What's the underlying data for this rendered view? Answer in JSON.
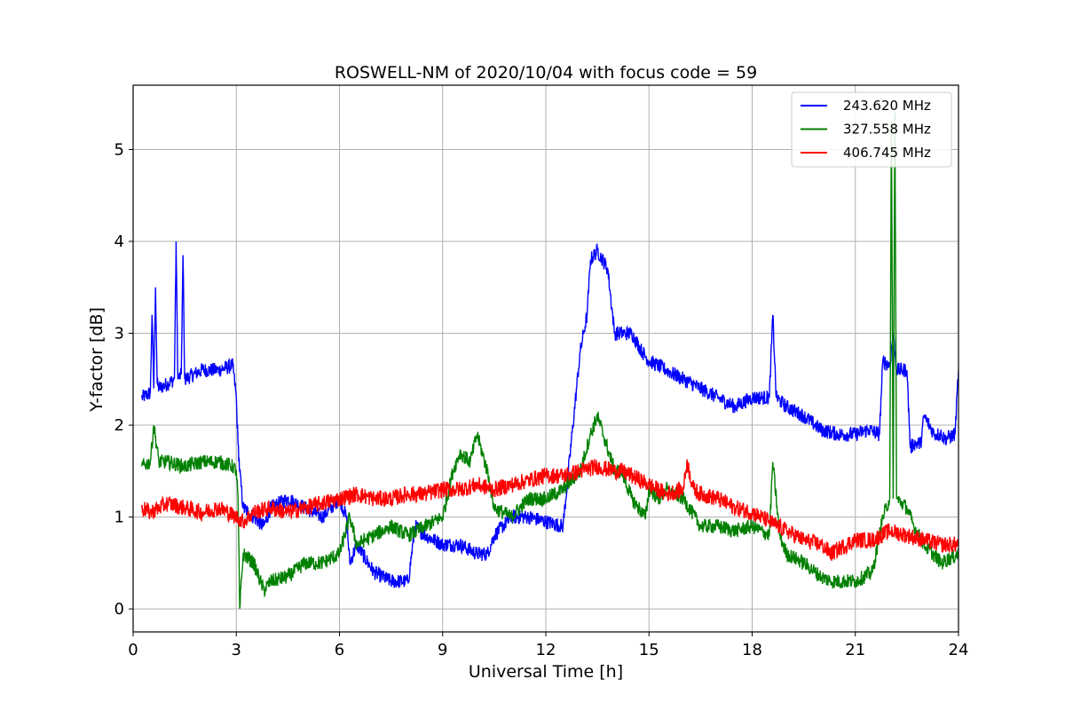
{
  "chart_data": {
    "type": "line",
    "title": "ROSWELL-NM of 2020/10/04 with focus code = 59",
    "xlabel": "Universal Time [h]",
    "ylabel": "Y-factor [dB]",
    "xlim": [
      0,
      24
    ],
    "ylim": [
      -0.25,
      5.7
    ],
    "xticks": [
      0,
      3,
      6,
      9,
      12,
      15,
      18,
      21,
      24
    ],
    "yticks": [
      0,
      1,
      2,
      3,
      4,
      5
    ],
    "grid": true,
    "legend_position": "top-right",
    "series": [
      {
        "name": "243.620 MHz",
        "color": "#0000ff",
        "x": [
          0.25,
          0.5,
          0.55,
          0.6,
          0.65,
          0.7,
          0.75,
          1.0,
          1.2,
          1.25,
          1.3,
          1.4,
          1.45,
          1.5,
          2.0,
          2.5,
          2.9,
          3.0,
          3.05,
          3.1,
          3.2,
          3.5,
          3.8,
          4.0,
          4.5,
          5.0,
          5.5,
          6.0,
          6.2,
          6.3,
          6.5,
          7.0,
          7.5,
          8.0,
          8.2,
          8.5,
          9.0,
          9.5,
          10.0,
          10.3,
          10.5,
          11.0,
          11.5,
          12.0,
          12.5,
          13.0,
          13.1,
          13.2,
          13.3,
          13.5,
          13.8,
          14.0,
          14.3,
          14.5,
          14.8,
          15.0,
          15.5,
          16.0,
          16.5,
          17.0,
          17.5,
          18.0,
          18.3,
          18.5,
          18.6,
          18.7,
          19.0,
          19.5,
          20.0,
          20.5,
          21.0,
          21.4,
          21.7,
          21.8,
          22.0,
          22.1,
          22.2,
          22.5,
          22.6,
          22.7,
          22.9,
          23.0,
          23.3,
          23.5,
          23.6,
          23.9,
          24.0
        ],
        "y": [
          2.3,
          2.35,
          3.2,
          2.4,
          3.5,
          2.45,
          2.4,
          2.45,
          2.5,
          4.0,
          2.5,
          2.55,
          3.85,
          2.5,
          2.6,
          2.6,
          2.65,
          2.3,
          1.8,
          1.5,
          1.1,
          1.0,
          0.9,
          1.1,
          1.2,
          1.1,
          1.0,
          1.2,
          1.0,
          0.5,
          0.7,
          0.4,
          0.3,
          0.3,
          0.9,
          0.8,
          0.7,
          0.7,
          0.6,
          0.6,
          0.8,
          1.0,
          1.0,
          0.95,
          0.9,
          2.8,
          3.0,
          3.2,
          3.8,
          3.9,
          3.7,
          3.0,
          3.0,
          3.0,
          2.8,
          2.7,
          2.6,
          2.5,
          2.4,
          2.3,
          2.2,
          2.3,
          2.3,
          2.3,
          3.2,
          2.3,
          2.2,
          2.1,
          1.95,
          1.9,
          1.9,
          1.95,
          1.9,
          2.7,
          2.65,
          3.0,
          2.6,
          2.6,
          1.75,
          1.8,
          1.8,
          2.1,
          1.9,
          1.9,
          1.85,
          1.9,
          2.6
        ]
      },
      {
        "name": "327.558 MHz",
        "color": "#008000",
        "x": [
          0.25,
          0.5,
          0.6,
          0.75,
          1.0,
          1.5,
          2.0,
          2.5,
          2.9,
          3.0,
          3.05,
          3.1,
          3.2,
          3.5,
          3.8,
          4.0,
          4.5,
          5.0,
          5.5,
          6.0,
          6.3,
          6.5,
          7.0,
          7.5,
          8.0,
          8.5,
          9.0,
          9.3,
          9.5,
          9.8,
          10.0,
          10.3,
          10.5,
          11.0,
          11.5,
          12.0,
          12.5,
          13.0,
          13.3,
          13.5,
          14.0,
          14.2,
          14.5,
          14.9,
          15.0,
          15.3,
          15.5,
          16.0,
          16.5,
          17.0,
          17.5,
          18.0,
          18.5,
          18.6,
          18.8,
          19.0,
          19.5,
          20.0,
          20.3,
          20.5,
          21.0,
          21.5,
          21.8,
          22.0,
          22.05,
          22.1,
          22.15,
          22.2,
          22.5,
          22.7,
          23.0,
          23.5,
          24.0
        ],
        "y": [
          1.55,
          1.6,
          2.0,
          1.6,
          1.6,
          1.55,
          1.6,
          1.6,
          1.55,
          1.5,
          1.2,
          0.0,
          0.6,
          0.5,
          0.2,
          0.3,
          0.35,
          0.5,
          0.5,
          0.6,
          1.0,
          0.7,
          0.8,
          0.9,
          0.8,
          0.9,
          1.0,
          1.5,
          1.7,
          1.6,
          1.9,
          1.5,
          1.1,
          1.0,
          1.2,
          1.2,
          1.3,
          1.5,
          1.9,
          2.1,
          1.5,
          1.5,
          1.2,
          1.0,
          1.3,
          1.2,
          1.3,
          1.2,
          0.9,
          0.9,
          0.85,
          0.9,
          0.8,
          1.6,
          0.8,
          0.6,
          0.5,
          0.35,
          0.3,
          0.3,
          0.3,
          0.4,
          1.0,
          1.2,
          5.3,
          1.2,
          5.4,
          1.2,
          1.1,
          0.9,
          0.7,
          0.5,
          0.6
        ]
      },
      {
        "name": "406.745 MHz",
        "color": "#ff0000",
        "x": [
          0.25,
          0.5,
          1.0,
          1.5,
          2.0,
          2.5,
          3.0,
          3.2,
          3.5,
          4.0,
          4.5,
          5.0,
          5.5,
          6.0,
          6.5,
          7.0,
          7.5,
          8.0,
          8.5,
          9.0,
          9.5,
          10.0,
          10.5,
          11.0,
          11.5,
          12.0,
          12.5,
          13.0,
          13.5,
          14.0,
          14.2,
          14.5,
          15.0,
          15.5,
          16.0,
          16.1,
          16.3,
          16.5,
          17.0,
          17.5,
          18.0,
          18.5,
          19.0,
          19.5,
          20.0,
          20.3,
          20.5,
          21.0,
          21.5,
          22.0,
          22.5,
          23.0,
          23.5,
          24.0
        ],
        "y": [
          1.1,
          1.05,
          1.15,
          1.1,
          1.05,
          1.1,
          1.0,
          0.95,
          1.05,
          1.1,
          1.05,
          1.1,
          1.15,
          1.2,
          1.25,
          1.2,
          1.2,
          1.25,
          1.25,
          1.3,
          1.3,
          1.35,
          1.3,
          1.35,
          1.4,
          1.45,
          1.45,
          1.5,
          1.55,
          1.5,
          1.5,
          1.45,
          1.35,
          1.25,
          1.3,
          1.6,
          1.3,
          1.25,
          1.2,
          1.1,
          1.05,
          0.95,
          0.85,
          0.75,
          0.7,
          0.6,
          0.65,
          0.75,
          0.75,
          0.85,
          0.8,
          0.75,
          0.7,
          0.7
        ]
      }
    ]
  }
}
